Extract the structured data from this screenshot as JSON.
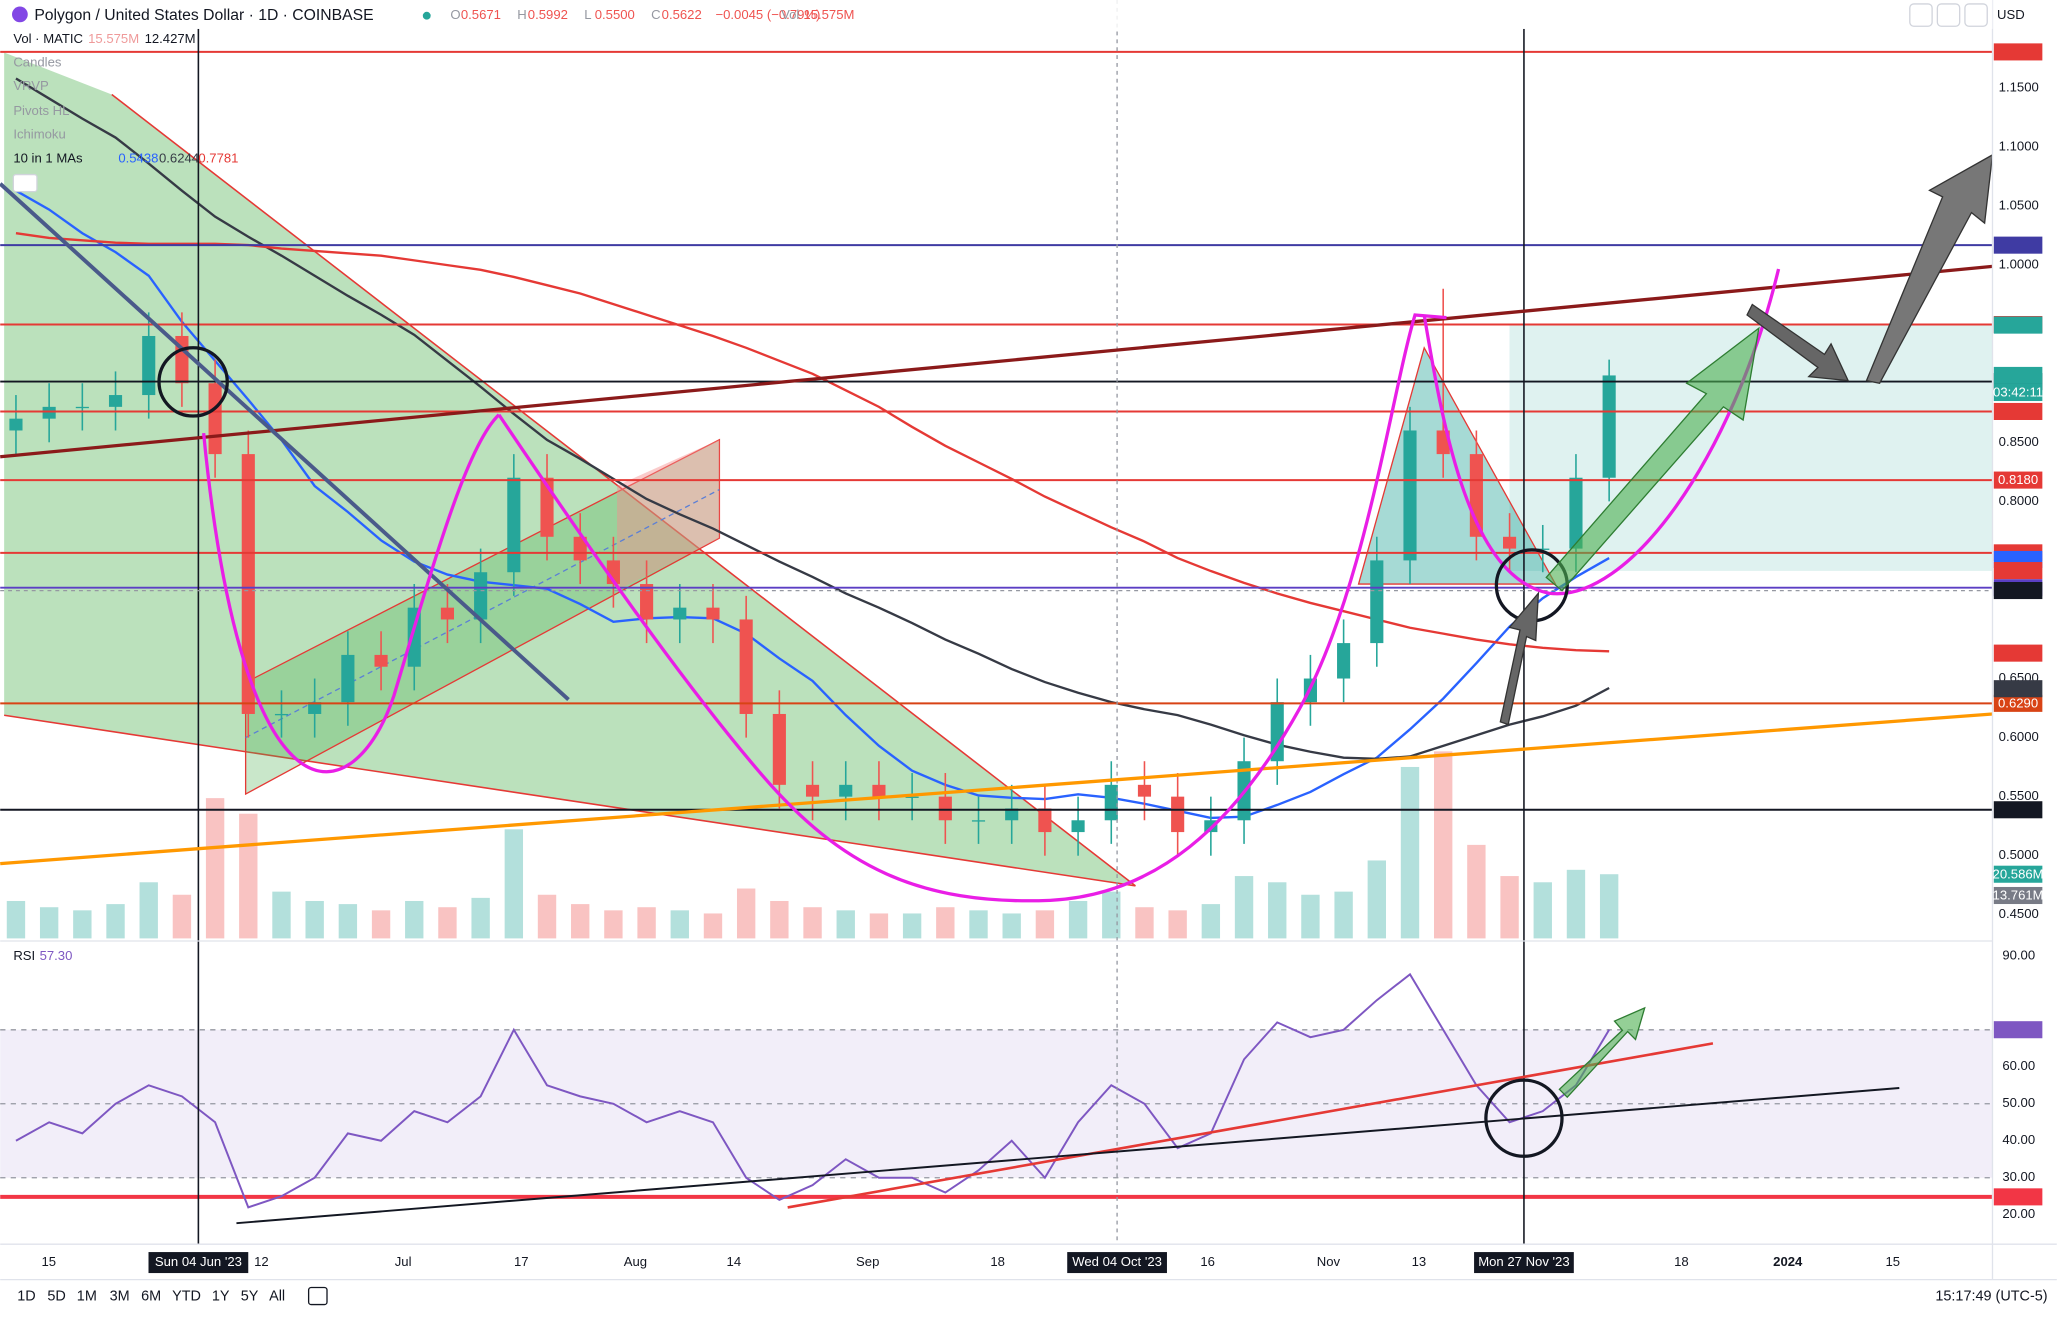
{
  "header": {
    "symbol": "Polygon / United States Dollar · 1D · COINBASE",
    "open_label": "O",
    "open": "0.5671",
    "high_label": "H",
    "high": "0.5992",
    "low_label": "L",
    "low": "0.5500",
    "close_label": "C",
    "close": "0.5622",
    "change": "−0.0045 (−0.79%)",
    "volume_label": "Vol",
    "volume": "15.575M",
    "currency": "USD"
  },
  "legend": {
    "volume_title": "Vol · MATIC",
    "volume_value": "15.575M",
    "volume_ma": "12.427M",
    "hidden_indicators": [
      "Candles",
      "VRVP",
      "Pivots HL",
      "Ichimoku"
    ],
    "ma_title": "10 in 1 MAs",
    "rsi_title": "RSI",
    "rsi_value": "57.30"
  },
  "chart_data": {
    "type": "candlestick",
    "ylim": [
      0.43,
      1.2
    ],
    "yticks": [
      {
        "value": 1.15,
        "label": "1.1500"
      },
      {
        "value": 1.1,
        "label": "1.1000"
      },
      {
        "value": 1.05,
        "label": "1.0500"
      },
      {
        "value": 1.0,
        "label": "1.0000"
      },
      {
        "value": 0.85,
        "label": "0.8500"
      },
      {
        "value": 0.8,
        "label": "0.8000"
      },
      {
        "value": 0.65,
        "label": "0.6500"
      },
      {
        "value": 0.6,
        "label": "0.6000"
      },
      {
        "value": 0.55,
        "label": "0.5500"
      },
      {
        "value": 0.5,
        "label": "0.5000"
      },
      {
        "value": 0.45,
        "label": "0.4500"
      }
    ],
    "x_labels": [
      "15",
      "Sun 04 Jun '23",
      "12",
      "Jul",
      "17",
      "Aug",
      "14",
      "Sep",
      "18",
      "Wed 04 Oct '23",
      "16",
      "Nov",
      "13",
      "Mon 27 Nov '23",
      "18",
      "2024",
      "15"
    ],
    "open": [
      0.86,
      0.87,
      0.88,
      0.88,
      0.89,
      0.94,
      0.9,
      0.84,
      0.62,
      0.62,
      0.63,
      0.67,
      0.66,
      0.71,
      0.7,
      0.74,
      0.82,
      0.77,
      0.75,
      0.73,
      0.7,
      0.71,
      0.7,
      0.62,
      0.56,
      0.55,
      0.56,
      0.55,
      0.55,
      0.53,
      0.53,
      0.54,
      0.52,
      0.53,
      0.56,
      0.55,
      0.52,
      0.53,
      0.58,
      0.63,
      0.65,
      0.68,
      0.75,
      0.86,
      0.84,
      0.77,
      0.76,
      0.76,
      0.82
    ],
    "high": [
      0.89,
      0.9,
      0.9,
      0.91,
      0.96,
      0.96,
      0.92,
      0.86,
      0.64,
      0.65,
      0.69,
      0.69,
      0.73,
      0.73,
      0.76,
      0.84,
      0.84,
      0.79,
      0.77,
      0.75,
      0.73,
      0.73,
      0.72,
      0.64,
      0.58,
      0.58,
      0.58,
      0.57,
      0.57,
      0.55,
      0.56,
      0.56,
      0.55,
      0.58,
      0.58,
      0.57,
      0.55,
      0.6,
      0.65,
      0.67,
      0.7,
      0.77,
      0.88,
      0.98,
      0.86,
      0.79,
      0.78,
      0.84,
      0.92
    ],
    "low": [
      0.84,
      0.85,
      0.86,
      0.86,
      0.87,
      0.88,
      0.82,
      0.6,
      0.6,
      0.6,
      0.61,
      0.64,
      0.64,
      0.68,
      0.68,
      0.72,
      0.75,
      0.73,
      0.71,
      0.68,
      0.68,
      0.68,
      0.6,
      0.54,
      0.53,
      0.53,
      0.53,
      0.53,
      0.51,
      0.51,
      0.51,
      0.5,
      0.5,
      0.51,
      0.53,
      0.5,
      0.5,
      0.51,
      0.56,
      0.61,
      0.63,
      0.66,
      0.73,
      0.82,
      0.75,
      0.74,
      0.74,
      0.74,
      0.8
    ],
    "close": [
      0.87,
      0.88,
      0.88,
      0.89,
      0.94,
      0.9,
      0.84,
      0.62,
      0.62,
      0.63,
      0.67,
      0.66,
      0.71,
      0.7,
      0.74,
      0.82,
      0.77,
      0.75,
      0.73,
      0.7,
      0.71,
      0.7,
      0.62,
      0.56,
      0.55,
      0.56,
      0.55,
      0.55,
      0.53,
      0.53,
      0.54,
      0.52,
      0.53,
      0.56,
      0.55,
      0.52,
      0.53,
      0.58,
      0.63,
      0.65,
      0.68,
      0.75,
      0.86,
      0.84,
      0.77,
      0.76,
      0.76,
      0.82,
      0.9066
    ],
    "up_color": "#26a69a",
    "down_color": "#ef5350",
    "volume": [
      12,
      10,
      9,
      11,
      18,
      14,
      45,
      40,
      15,
      12,
      11,
      9,
      12,
      10,
      13,
      35,
      14,
      11,
      9,
      10,
      9,
      8,
      16,
      12,
      10,
      9,
      8,
      8,
      10,
      9,
      8,
      9,
      12,
      15,
      10,
      9,
      11,
      20,
      18,
      14,
      15,
      25,
      55,
      60,
      30,
      20,
      18,
      22,
      20.586
    ],
    "volume_ylim": [
      0,
      120
    ],
    "volume_badges": [
      {
        "value": 20.586,
        "label": "20.586M",
        "color": "#26a69a"
      },
      {
        "value": 13.761,
        "label": "13.761M",
        "color": "#787b86"
      }
    ],
    "moving_averages": [
      {
        "color": "#2962ff",
        "legend_value": 0.5438,
        "values": [
          1.063,
          1.047,
          1.027,
          1.011,
          0.991,
          0.952,
          0.919,
          0.886,
          0.852,
          0.813,
          0.791,
          0.767,
          0.749,
          0.738,
          0.732,
          0.729,
          0.726,
          0.713,
          0.698,
          0.701,
          0.702,
          0.701,
          0.688,
          0.667,
          0.648,
          0.619,
          0.593,
          0.572,
          0.56,
          0.551,
          0.549,
          0.548,
          0.552,
          0.549,
          0.544,
          0.538,
          0.532,
          0.533,
          0.543,
          0.554,
          0.569,
          0.583,
          0.607,
          0.633,
          0.663,
          0.694,
          0.718,
          0.736,
          0.752
        ]
      },
      {
        "color": "#363a45",
        "legend_value": 0.6244,
        "values": [
          1.158,
          1.141,
          1.124,
          1.108,
          1.086,
          1.063,
          1.041,
          1.024,
          1.008,
          0.991,
          0.974,
          0.958,
          0.941,
          0.919,
          0.897,
          0.874,
          0.852,
          0.836,
          0.819,
          0.802,
          0.789,
          0.777,
          0.763,
          0.749,
          0.736,
          0.722,
          0.71,
          0.697,
          0.683,
          0.671,
          0.658,
          0.647,
          0.638,
          0.63,
          0.624,
          0.619,
          0.611,
          0.602,
          0.594,
          0.588,
          0.583,
          0.582,
          0.584,
          0.593,
          0.602,
          0.611,
          0.618,
          0.627,
          0.642
        ]
      },
      {
        "color": "#e53935",
        "legend_value": 0.7781,
        "values": [
          1.027,
          1.023,
          1.021,
          1.019,
          1.018,
          1.018,
          1.018,
          1.017,
          1.014,
          1.012,
          1.01,
          1.008,
          1.004,
          1.0,
          0.996,
          0.99,
          0.983,
          0.976,
          0.967,
          0.958,
          0.949,
          0.94,
          0.93,
          0.919,
          0.908,
          0.894,
          0.88,
          0.863,
          0.847,
          0.833,
          0.819,
          0.804,
          0.791,
          0.778,
          0.766,
          0.752,
          0.741,
          0.731,
          0.722,
          0.714,
          0.707,
          0.7,
          0.693,
          0.688,
          0.683,
          0.679,
          0.676,
          0.674,
          0.673
        ]
      }
    ],
    "price_levels": [
      {
        "value": 1.1805,
        "color": "#e53935"
      },
      {
        "value": 1.0169,
        "color": "#3f3ba3"
      },
      {
        "value": 0.9497,
        "color": "#e53935"
      },
      {
        "value": 0.9014,
        "color": "#131722"
      },
      {
        "value": 0.8761,
        "color": "#e53935"
      },
      {
        "value": 0.818,
        "label": "0.8180",
        "color": "#e53935"
      },
      {
        "value": 0.7564,
        "color": "#e53935"
      },
      {
        "value": 0.7269,
        "color": "#5b3fc4"
      },
      {
        "value": 0.629,
        "label": "0.6290",
        "color": "#d84315"
      },
      {
        "value": 0.5389,
        "color": "#131722"
      }
    ],
    "price_badges": [
      {
        "value": 0.9492,
        "color": "#26a69a"
      },
      {
        "value": 0.9066,
        "color": "#26a69a"
      },
      {
        "value": 0.7508,
        "color": "#2962ff"
      },
      {
        "value": 0.7414,
        "color": "#e53935"
      },
      {
        "value": 0.7245,
        "color": "#131722"
      },
      {
        "value": 0.6715,
        "color": "#e53935"
      },
      {
        "value": 0.6414,
        "color": "#363a45"
      }
    ],
    "countdown": "03:42:11",
    "rsi": {
      "ylim": [
        13.1,
        94
      ],
      "yticks": [
        {
          "value": 90,
          "label": "90.00"
        },
        {
          "value": 60,
          "label": "60.00"
        },
        {
          "value": 50,
          "label": "50.00"
        },
        {
          "value": 40,
          "label": "40.00"
        },
        {
          "value": 30,
          "label": "30.00"
        },
        {
          "value": 20,
          "label": "20.00"
        }
      ],
      "bands": [
        70,
        50,
        30
      ],
      "color": "#7e57c2",
      "values": [
        40,
        45,
        42,
        50,
        55,
        52,
        45,
        22,
        25,
        30,
        42,
        40,
        48,
        45,
        52,
        70,
        55,
        52,
        50,
        45,
        48,
        45,
        30,
        24,
        28,
        35,
        30,
        30,
        26,
        32,
        40,
        30,
        45,
        55,
        50,
        38,
        42,
        62,
        72,
        68,
        70,
        78,
        85,
        70,
        55,
        45,
        48,
        55,
        70.02
      ],
      "badges": [
        {
          "value": 70.02,
          "color": "#7e57c2"
        },
        {
          "value": 24.83,
          "color": "#f23645"
        }
      ],
      "level": {
        "value": 24.83,
        "color": "#f23645"
      }
    }
  },
  "toolbar": {
    "ranges": [
      "1D",
      "5D",
      "1M",
      "3M",
      "6M",
      "YTD",
      "1Y",
      "5Y",
      "All"
    ],
    "clock": "15:17:49 (UTC-5)"
  }
}
